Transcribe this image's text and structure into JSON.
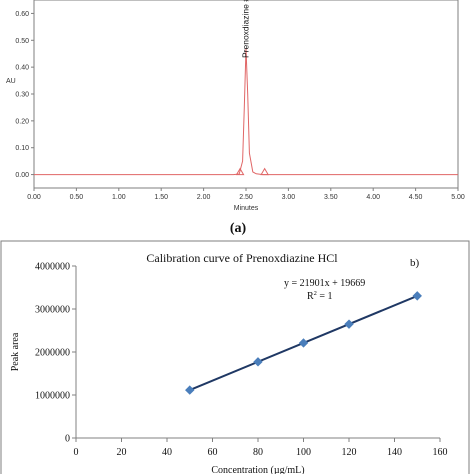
{
  "panel_a_label": "(a)",
  "panel_b_label": "b)",
  "chart_data": [
    {
      "id": "chromatogram",
      "type": "line",
      "title": "",
      "xlabel": "Minutes",
      "ylabel": "AU",
      "xlim": [
        0.0,
        5.0
      ],
      "ylim": [
        -0.05,
        0.65
      ],
      "xticks": [
        "0.00",
        "0.50",
        "1.00",
        "1.50",
        "2.00",
        "2.50",
        "3.00",
        "3.50",
        "4.00",
        "4.50",
        "5.00"
      ],
      "yticks": [
        "0.00",
        "0.10",
        "0.20",
        "0.30",
        "0.40",
        "0.50",
        "0.60"
      ],
      "line_color": "#e06666",
      "x": [
        0.0,
        2.35,
        2.42,
        2.46,
        2.48,
        2.5,
        2.52,
        2.54,
        2.58,
        2.62,
        2.7,
        5.0
      ],
      "y": [
        0.0,
        0.0,
        0.002,
        0.05,
        0.25,
        0.47,
        0.3,
        0.08,
        0.01,
        0.003,
        0.0,
        0.0
      ],
      "peak_label": "Prenoxdiazine #",
      "integration_markers_x": [
        2.43,
        2.72
      ]
    },
    {
      "id": "calibration",
      "type": "scatter",
      "title": "Calibration curve of Prenoxdiazine HCl",
      "xlabel": "Concentration (µg/mL)",
      "ylabel": "Peak area",
      "xlim": [
        0,
        160
      ],
      "ylim": [
        0,
        4000000
      ],
      "xticks": [
        "0",
        "20",
        "40",
        "60",
        "80",
        "100",
        "120",
        "140",
        "160"
      ],
      "yticks": [
        "0",
        "1000000",
        "2000000",
        "3000000",
        "4000000"
      ],
      "x": [
        50,
        80,
        100,
        120,
        150
      ],
      "y": [
        1114719,
        1771749,
        2209769,
        2647789,
        3304819
      ],
      "equation": "y = 21901x + 19669",
      "r2_prefix": "R",
      "r2_sup": "2",
      "r2_suffix": " = 1",
      "marker_color": "#4a7ebb",
      "line_color": "#1f3864"
    }
  ]
}
